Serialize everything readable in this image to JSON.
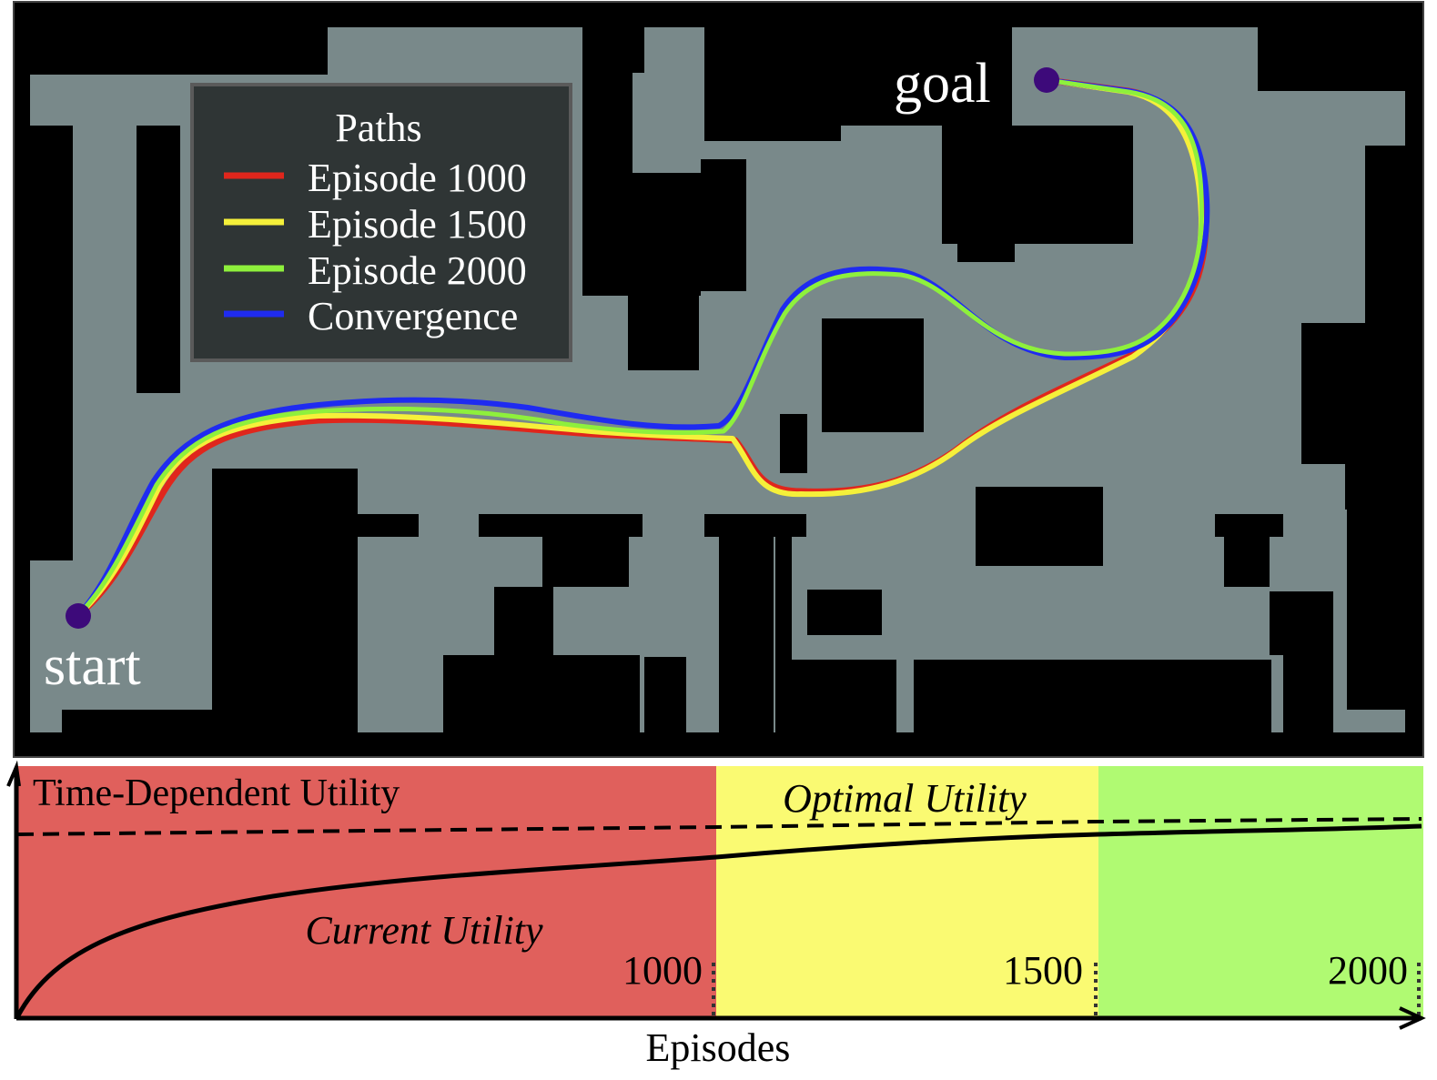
{
  "map": {
    "start_label": "start",
    "goal_label": "goal",
    "legend": {
      "title": "Paths",
      "entries": [
        {
          "label": "Episode 1000",
          "color": "#e0261c"
        },
        {
          "label": "Episode 1500",
          "color": "#f5f03a"
        },
        {
          "label": "Episode 2000",
          "color": "#8ef03c"
        },
        {
          "label": "Convergence",
          "color": "#1f2bf0"
        }
      ]
    },
    "colors": {
      "free_space": "#79898a",
      "obstacle": "#000000",
      "marker": "#3d0a7a",
      "legend_bg": "#2f3535"
    }
  },
  "utility_chart": {
    "ylabel": "Time-Dependent Utility",
    "xlabel": "Episodes",
    "optimal_label": "Optimal Utility",
    "current_label": "Current Utility",
    "phases": [
      {
        "marker": "1000",
        "color": "#e0605c"
      },
      {
        "marker": "1500",
        "color": "#fafa72"
      },
      {
        "marker": "2000",
        "color": "#b0fa72"
      }
    ]
  }
}
